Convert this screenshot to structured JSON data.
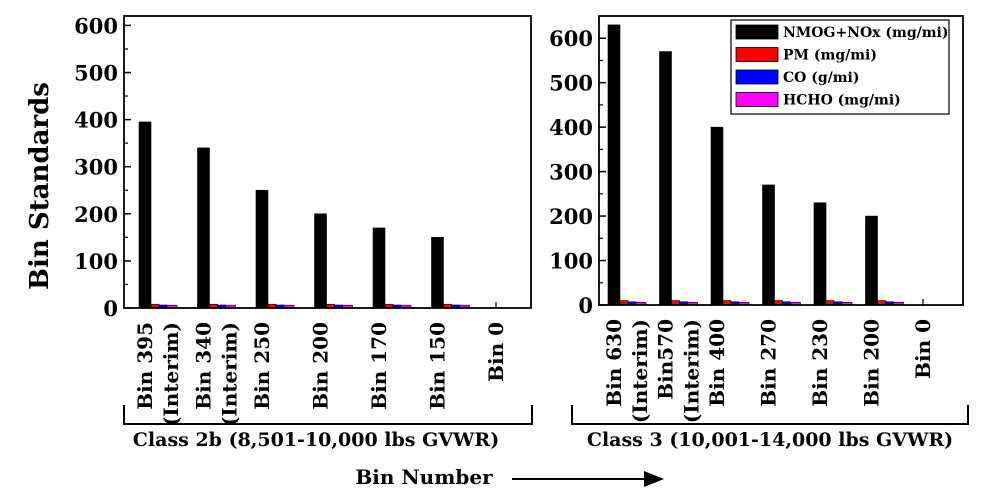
{
  "chart_data": [
    {
      "type": "bar",
      "ylabel": "Bin Standards",
      "ylim": [
        0,
        620
      ],
      "yticks": [
        0,
        100,
        200,
        300,
        400,
        500,
        600
      ],
      "categories": [
        [
          "Bin 395",
          "(Interim)"
        ],
        [
          "Bin 340",
          "(Interim)"
        ],
        [
          "Bin 250"
        ],
        [
          "Bin 200"
        ],
        [
          "Bin 170"
        ],
        [
          "Bin 150"
        ],
        [
          "Bin 0"
        ]
      ],
      "series": [
        {
          "name": "NMOG+NOx (mg/mi)",
          "color": "#000000",
          "values": [
            395,
            340,
            250,
            200,
            170,
            150,
            0
          ]
        },
        {
          "name": "PM (mg/mi)",
          "color": "#ff0000",
          "values": [
            8,
            8,
            8,
            8,
            8,
            8,
            0
          ]
        },
        {
          "name": "CO (g/mi)",
          "color": "#0000ff",
          "values": [
            6.4,
            6.4,
            6.4,
            6.4,
            6.4,
            6.4,
            0
          ]
        },
        {
          "name": "HCHO (mg/mi)",
          "color": "#ff00ff",
          "values": [
            6,
            6,
            6,
            6,
            6,
            6,
            0
          ]
        }
      ],
      "group_label": "Class 2b (8,501-10,000 lbs GVWR)"
    },
    {
      "type": "bar",
      "ylim": [
        0,
        650
      ],
      "yticks": [
        0,
        100,
        200,
        300,
        400,
        500,
        600
      ],
      "categories": [
        [
          "Bin 630",
          "(Interim)"
        ],
        [
          "Bin570",
          "(Interim)"
        ],
        [
          "Bin 400"
        ],
        [
          "Bin 270"
        ],
        [
          "Bin 230"
        ],
        [
          "Bin 200"
        ],
        [
          "Bin 0"
        ]
      ],
      "series": [
        {
          "name": "NMOG+NOx (mg/mi)",
          "color": "#000000",
          "values": [
            630,
            570,
            400,
            270,
            230,
            200,
            0
          ]
        },
        {
          "name": "PM (mg/mi)",
          "color": "#ff0000",
          "values": [
            10,
            10,
            10,
            10,
            10,
            10,
            0
          ]
        },
        {
          "name": "CO (g/mi)",
          "color": "#0000ff",
          "values": [
            7.3,
            7.3,
            7.3,
            7.3,
            7.3,
            7.3,
            0
          ]
        },
        {
          "name": "HCHO (mg/mi)",
          "color": "#ff00ff",
          "values": [
            6,
            6,
            6,
            6,
            6,
            6,
            0
          ]
        }
      ],
      "legend": {
        "placement": "top-right",
        "entries": [
          "NMOG+NOx (mg/mi)",
          "PM (mg/mi)",
          "CO (g/mi)",
          "HCHO (mg/mi)"
        ]
      },
      "group_label": "Class 3 (10,001-14,000 lbs GVWR)"
    }
  ],
  "xlabel": "Bin Number"
}
